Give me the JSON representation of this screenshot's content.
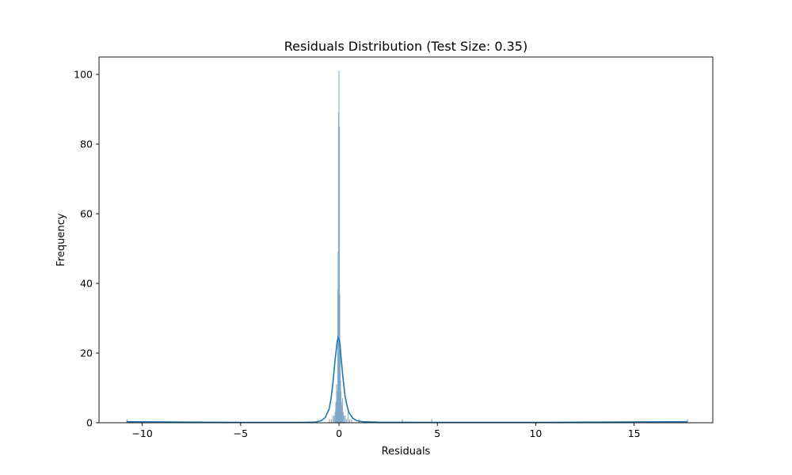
{
  "chart_data": {
    "type": "bar",
    "title": "Residuals Distribution (Test Size: 0.35)",
    "xlabel": "Residuals",
    "ylabel": "Frequency",
    "xlim": [
      -12.2,
      19.0
    ],
    "ylim": [
      0,
      105
    ],
    "x_ticks": [
      -10,
      -5,
      0,
      5,
      10,
      15
    ],
    "x_tick_labels": [
      "−10",
      "−5",
      "0",
      "5",
      "10",
      "15"
    ],
    "y_ticks": [
      0,
      20,
      40,
      60,
      80,
      100
    ],
    "y_tick_labels": [
      "0",
      "20",
      "40",
      "60",
      "80",
      "100"
    ],
    "grid": false,
    "legend": "none",
    "colors": {
      "bars": "#7fa6c6",
      "kde": "#1f77b4",
      "axes": "#000000"
    },
    "histogram": {
      "bin_width": 0.02,
      "bins": [
        {
          "x": -10.8,
          "count": 1
        },
        {
          "x": 3.2,
          "count": 1
        },
        {
          "x": 4.7,
          "count": 1
        },
        {
          "x": 17.7,
          "count": 1
        },
        {
          "x": -0.5,
          "count": 1
        },
        {
          "x": -0.4,
          "count": 1
        },
        {
          "x": -0.32,
          "count": 2
        },
        {
          "x": -0.26,
          "count": 2
        },
        {
          "x": -0.22,
          "count": 3
        },
        {
          "x": -0.18,
          "count": 6
        },
        {
          "x": -0.16,
          "count": 4
        },
        {
          "x": -0.14,
          "count": 11
        },
        {
          "x": -0.12,
          "count": 7
        },
        {
          "x": -0.1,
          "count": 9
        },
        {
          "x": -0.08,
          "count": 38
        },
        {
          "x": -0.06,
          "count": 49
        },
        {
          "x": -0.04,
          "count": 89
        },
        {
          "x": -0.02,
          "count": 101
        },
        {
          "x": 0.0,
          "count": 85
        },
        {
          "x": 0.02,
          "count": 37
        },
        {
          "x": 0.04,
          "count": 22
        },
        {
          "x": 0.06,
          "count": 12
        },
        {
          "x": 0.08,
          "count": 9
        },
        {
          "x": 0.1,
          "count": 6
        },
        {
          "x": 0.12,
          "count": 5
        },
        {
          "x": 0.14,
          "count": 4
        },
        {
          "x": 0.16,
          "count": 7
        },
        {
          "x": 0.2,
          "count": 3
        },
        {
          "x": 0.24,
          "count": 2
        },
        {
          "x": 0.3,
          "count": 2
        },
        {
          "x": 0.36,
          "count": 1
        },
        {
          "x": 0.44,
          "count": 3
        },
        {
          "x": 0.52,
          "count": 1
        },
        {
          "x": 0.62,
          "count": 1
        },
        {
          "x": 1.0,
          "count": 1
        }
      ]
    },
    "kde": {
      "x": [
        -10.8,
        -5,
        -2,
        -1.2,
        -0.9,
        -0.7,
        -0.5,
        -0.4,
        -0.3,
        -0.2,
        -0.1,
        -0.05,
        0.0,
        0.05,
        0.1,
        0.2,
        0.3,
        0.4,
        0.5,
        0.7,
        0.9,
        1.2,
        2,
        5,
        10,
        17.7
      ],
      "y": [
        0.3,
        0.1,
        0.1,
        0.2,
        0.6,
        1.5,
        4,
        7,
        12,
        18,
        23,
        24.5,
        24,
        22.5,
        19,
        13,
        8,
        5,
        3,
        1.3,
        0.6,
        0.3,
        0.15,
        0.1,
        0.1,
        0.3
      ]
    }
  }
}
